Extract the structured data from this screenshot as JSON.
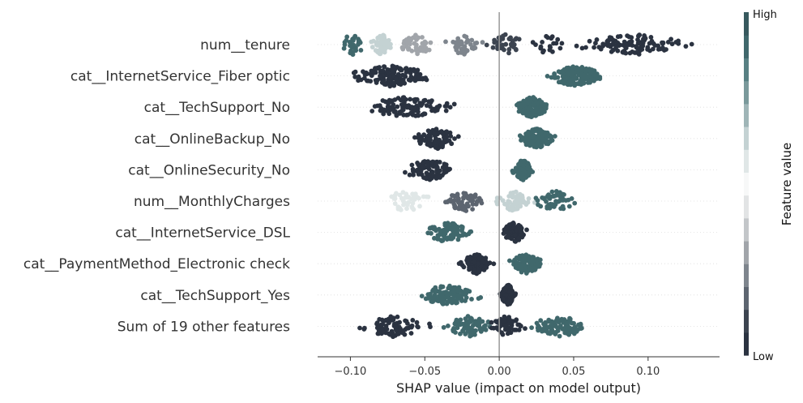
{
  "chart_data": {
    "type": "scatter",
    "subtype": "shap-beeswarm",
    "title": "",
    "xlabel": "SHAP value (impact on model output)",
    "xlim": [
      -0.122,
      0.148
    ],
    "x_ticks": [
      -0.1,
      -0.05,
      0.0,
      0.05,
      0.1
    ],
    "x_tick_labels": [
      "−0.10",
      "−0.05",
      "0.00",
      "0.05",
      "0.10"
    ],
    "zero_line": true,
    "colorbar": {
      "title": "Feature value",
      "high_label": "High",
      "low_label": "Low",
      "colors_low_to_high": [
        "#2b3341",
        "#3c4450",
        "#5d6570",
        "#7e858d",
        "#a1a5aa",
        "#c3c6c9",
        "#e2e4e5",
        "#f7f8f8",
        "#e0e7e7",
        "#c4d2d3",
        "#9fb5b7",
        "#7a999b",
        "#588083",
        "#40686c",
        "#37595e"
      ]
    },
    "features": [
      {
        "name": "num__tenure",
        "segments": [
          {
            "from": -0.11,
            "to": -0.088,
            "color": "#40686c",
            "n": 30
          },
          {
            "from": -0.088,
            "to": -0.07,
            "color": "#c4d2d3",
            "n": 60
          },
          {
            "from": -0.07,
            "to": -0.04,
            "color": "#a1a5aa",
            "n": 40
          },
          {
            "from": -0.04,
            "to": -0.01,
            "color": "#7e858d",
            "n": 40
          },
          {
            "from": -0.01,
            "to": 0.02,
            "color": "#3c4450",
            "n": 40
          },
          {
            "from": 0.02,
            "to": 0.045,
            "color": "#2b3341",
            "n": 20
          },
          {
            "from": 0.045,
            "to": 0.135,
            "color": "#2b3341",
            "n": 110
          }
        ]
      },
      {
        "name": "cat__InternetService_Fiber optic",
        "segments": [
          {
            "from": -0.108,
            "to": -0.038,
            "color": "#2b3341",
            "n": 140
          },
          {
            "from": 0.028,
            "to": 0.074,
            "color": "#40686c",
            "n": 150
          }
        ]
      },
      {
        "name": "cat__TechSupport_No",
        "segments": [
          {
            "from": -0.1,
            "to": -0.024,
            "color": "#2b3341",
            "n": 110
          },
          {
            "from": 0.008,
            "to": 0.036,
            "color": "#40686c",
            "n": 140
          }
        ]
      },
      {
        "name": "cat__OnlineBackup_No",
        "segments": [
          {
            "from": -0.06,
            "to": -0.024,
            "color": "#2b3341",
            "n": 100
          },
          {
            "from": 0.01,
            "to": 0.04,
            "color": "#40686c",
            "n": 130
          }
        ]
      },
      {
        "name": "cat__OnlineSecurity_No",
        "segments": [
          {
            "from": -0.07,
            "to": -0.024,
            "color": "#2b3341",
            "n": 90
          },
          {
            "from": 0.008,
            "to": 0.024,
            "color": "#40686c",
            "n": 130
          }
        ]
      },
      {
        "name": "num__MonthlyCharges",
        "segments": [
          {
            "from": -0.085,
            "to": -0.04,
            "color": "#e0e7e7",
            "n": 40
          },
          {
            "from": -0.04,
            "to": -0.005,
            "color": "#5d6570",
            "n": 60
          },
          {
            "from": -0.005,
            "to": 0.025,
            "color": "#c4d2d3",
            "n": 60
          },
          {
            "from": 0.02,
            "to": 0.055,
            "color": "#40686c",
            "n": 50
          }
        ]
      },
      {
        "name": "cat__InternetService_DSL",
        "segments": [
          {
            "from": -0.055,
            "to": -0.014,
            "color": "#40686c",
            "n": 90
          },
          {
            "from": 0.0,
            "to": 0.02,
            "color": "#2b3341",
            "n": 120
          }
        ]
      },
      {
        "name": "cat__PaymentMethod_Electronic check",
        "segments": [
          {
            "from": -0.028,
            "to": -0.003,
            "color": "#2b3341",
            "n": 110
          },
          {
            "from": 0.003,
            "to": 0.032,
            "color": "#40686c",
            "n": 100
          }
        ]
      },
      {
        "name": "cat__TechSupport_Yes",
        "segments": [
          {
            "from": -0.06,
            "to": -0.008,
            "color": "#40686c",
            "n": 100
          },
          {
            "from": 0.0,
            "to": 0.012,
            "color": "#2b3341",
            "n": 130
          }
        ]
      },
      {
        "name": "Sum of 19 other features",
        "segments": [
          {
            "from": -0.102,
            "to": -0.04,
            "color": "#2b3341",
            "n": 80
          },
          {
            "from": -0.04,
            "to": 0.0,
            "color": "#40686c",
            "n": 80
          },
          {
            "from": -0.01,
            "to": 0.02,
            "color": "#2b3341",
            "n": 60
          },
          {
            "from": 0.015,
            "to": 0.068,
            "color": "#40686c",
            "n": 100
          }
        ]
      }
    ]
  }
}
